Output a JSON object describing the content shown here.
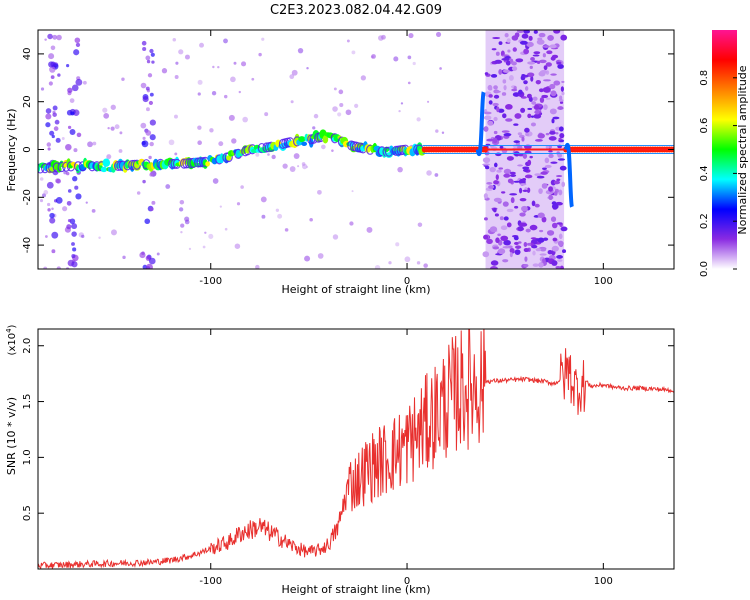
{
  "title": "C2E3.2023.082.04.42.G09",
  "chart_data": [
    {
      "type": "heatmap",
      "xlabel": "Height of straight line (km)",
      "ylabel": "Frequency (Hz)",
      "xlim": [
        -188,
        136
      ],
      "ylim": [
        -50,
        50
      ],
      "xticks": [
        -100,
        0,
        100
      ],
      "xtick_labels": [
        "-100",
        "0",
        "100"
      ],
      "yticks": [
        -40,
        -20,
        0,
        20,
        40
      ],
      "ytick_labels": [
        "-40",
        "-20",
        "0",
        "20",
        "40"
      ],
      "colorbar": {
        "label": "Normalized spectral amplitude",
        "range": [
          0,
          1
        ],
        "ticks": [
          0.0,
          0.2,
          0.4,
          0.6,
          0.8
        ],
        "tick_labels": [
          "0.0",
          "0.2",
          "0.4",
          "0.6",
          "0.8"
        ],
        "colors": [
          "#ffffff",
          "#8a2be2",
          "#0000ff",
          "#00ffff",
          "#00ff00",
          "#ffff00",
          "#ff8000",
          "#ff0000",
          "#ff1493"
        ]
      },
      "ridge": {
        "x": [
          -188,
          -170,
          -150,
          -130,
          -115,
          -100,
          -90,
          -80,
          -70,
          -60,
          -50,
          -40,
          -30,
          -20,
          -10,
          0,
          10,
          20,
          30,
          36,
          40,
          80,
          84,
          90,
          110,
          136
        ],
        "y": [
          -8,
          -7,
          -7,
          -6,
          -6,
          -5,
          -3,
          0,
          1,
          3,
          4,
          6,
          2,
          0,
          -1,
          0,
          0,
          0,
          0,
          0,
          0,
          0,
          0,
          0,
          0,
          0
        ]
      },
      "noise_band_x": [
        40,
        80
      ],
      "grid": false
    },
    {
      "type": "line",
      "xlabel": "Height of straight line (km)",
      "ylabel": "SNR (10 * v/v)",
      "y_scale_label": "(x10",
      "y_scale_exponent": "4",
      "xlim": [
        -188,
        136
      ],
      "ylim": [
        0,
        2.15
      ],
      "xticks": [
        -100,
        0,
        100
      ],
      "xtick_labels": [
        "-100",
        "0",
        "100"
      ],
      "yticks": [
        0.5,
        1.0,
        1.5,
        2.0
      ],
      "ytick_labels": [
        "0.5",
        "1.0",
        "1.5",
        "2.0"
      ],
      "series": [
        {
          "color": "#e8302e",
          "x": [
            -188,
            -170,
            -150,
            -130,
            -120,
            -110,
            -100,
            -90,
            -85,
            -80,
            -75,
            -70,
            -65,
            -60,
            -55,
            -50,
            -45,
            -40,
            -35,
            -30,
            -25,
            -20,
            -15,
            -10,
            -5,
            0,
            5,
            10,
            15,
            20,
            25,
            30,
            35,
            40,
            50,
            60,
            70,
            75,
            80,
            82,
            84,
            86,
            90,
            95,
            100,
            105,
            110,
            120,
            136
          ],
          "y": [
            0.03,
            0.04,
            0.05,
            0.06,
            0.08,
            0.12,
            0.18,
            0.25,
            0.32,
            0.35,
            0.38,
            0.33,
            0.28,
            0.22,
            0.18,
            0.15,
            0.17,
            0.22,
            0.38,
            0.75,
            0.8,
            0.9,
            0.95,
            1.0,
            1.05,
            1.12,
            1.2,
            1.3,
            1.4,
            1.5,
            1.58,
            1.63,
            1.66,
            1.68,
            1.69,
            1.7,
            1.68,
            1.66,
            1.72,
            1.8,
            1.7,
            1.62,
            1.65,
            1.64,
            1.65,
            1.63,
            1.62,
            1.62,
            1.6
          ]
        }
      ],
      "grid": false
    }
  ]
}
